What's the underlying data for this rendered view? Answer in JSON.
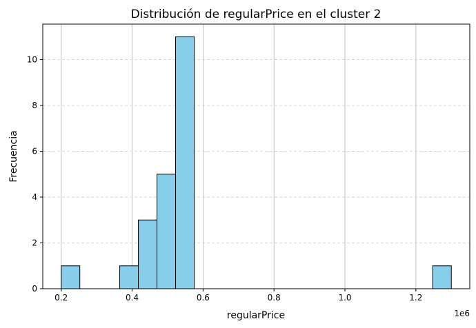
{
  "chart_data": {
    "type": "bar",
    "title": "Distribución de regularPrice en el cluster 2",
    "xlabel": "regularPrice",
    "ylabel": "Frecuencia",
    "x_multiplier_label": "1e6",
    "xlim": [
      0.148,
      1.352
    ],
    "ylim": [
      0,
      11.55
    ],
    "x_ticks": [
      0.2,
      0.4,
      0.6,
      0.8,
      1.0,
      1.2
    ],
    "x_tick_labels": [
      "0.2",
      "0.4",
      "0.6",
      "0.8",
      "1.0",
      "1.2"
    ],
    "y_ticks": [
      0,
      2,
      4,
      6,
      8,
      10
    ],
    "y_tick_labels": [
      "0",
      "2",
      "4",
      "6",
      "8",
      "10"
    ],
    "bins": [
      {
        "x0": 0.2,
        "x1": 0.2525,
        "value": 1
      },
      {
        "x0": 0.365,
        "x1": 0.4175,
        "value": 1
      },
      {
        "x0": 0.4175,
        "x1": 0.47,
        "value": 3
      },
      {
        "x0": 0.47,
        "x1": 0.5225,
        "value": 5
      },
      {
        "x0": 0.5225,
        "x1": 0.575,
        "value": 11
      },
      {
        "x0": 1.2475,
        "x1": 1.3,
        "value": 1
      }
    ],
    "bar_color": "#87ceeb",
    "bar_edge_color": "#000000",
    "grid": true
  }
}
